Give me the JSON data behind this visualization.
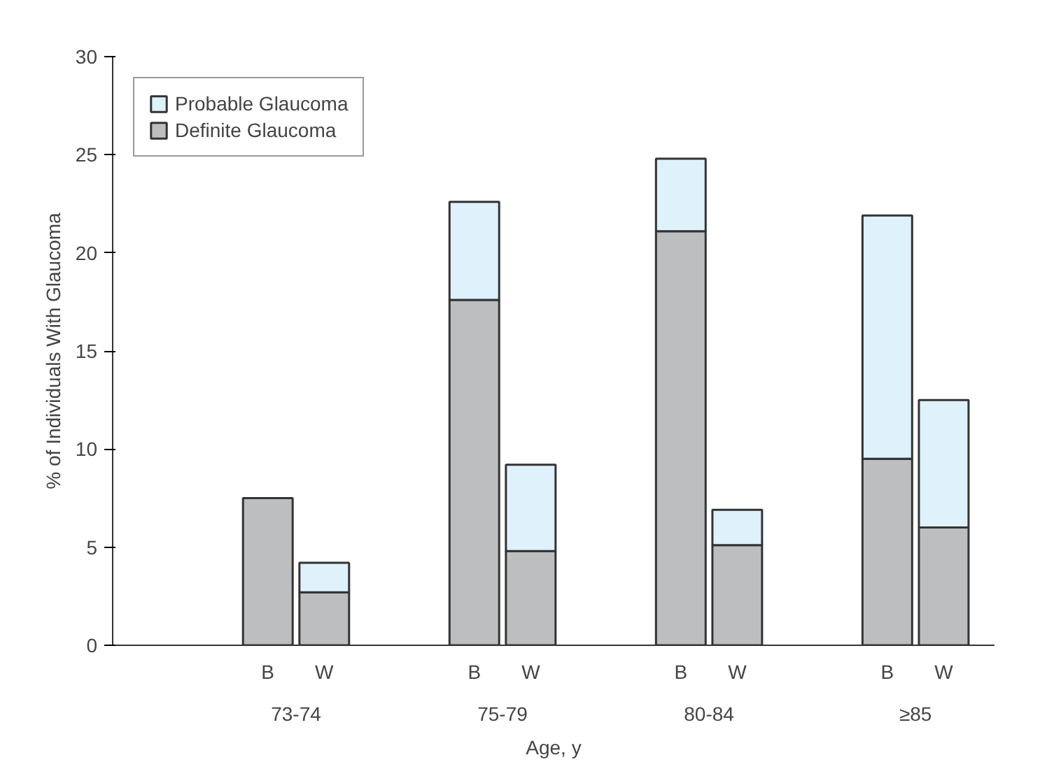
{
  "chart_data": {
    "type": "bar",
    "stacked": true,
    "xlabel": "Age, y",
    "ylabel": "% of Individuals With Glaucoma",
    "categories": [
      "B",
      "W",
      "B",
      "W",
      "B",
      "W",
      "B",
      "W"
    ],
    "annotations": [
      "73-74",
      "75-79",
      "80-84",
      "≥85"
    ],
    "series": [
      {
        "name": "Definite Glaucoma",
        "color": "#bdbec0",
        "values": [
          7.5,
          2.7,
          17.6,
          4.8,
          21.1,
          5.1,
          9.5,
          6.0
        ]
      },
      {
        "name": "Probable Glaucoma",
        "color": "#dff1fb",
        "values": [
          null,
          1.5,
          5.0,
          4.4,
          3.7,
          1.8,
          12.4,
          6.5
        ]
      }
    ],
    "ylim": [
      0,
      30
    ],
    "yticks": [
      0,
      5,
      10,
      15,
      20,
      25,
      30
    ],
    "legend": "top left",
    "grid": false
  }
}
